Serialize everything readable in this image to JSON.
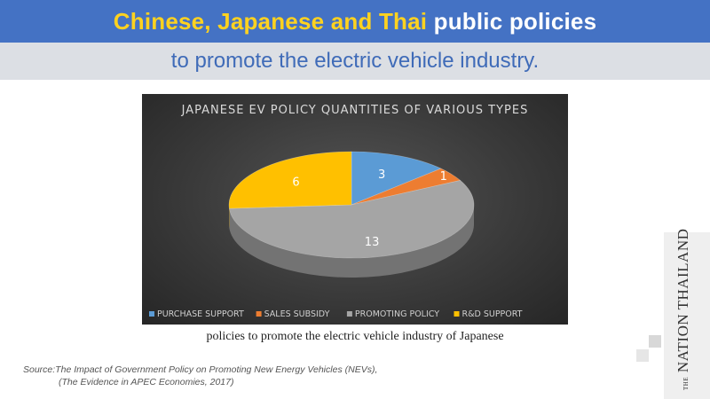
{
  "header": {
    "title_part1": "Chinese, Japanese and Thai",
    "title_part2": "public policies",
    "subtitle": "to promote the electric vehicle industry."
  },
  "chart_data": {
    "type": "pie",
    "title": "JAPANESE EV POLICY QUANTITIES OF VARIOUS TYPES",
    "categories": [
      "PURCHASE SUPPORT",
      "SALES SUBSIDY",
      "PROMOTING POLICY",
      "R&D SUPPORT"
    ],
    "values": [
      3,
      1,
      13,
      6
    ],
    "colors": [
      "#5b9bd5",
      "#ed7d31",
      "#a5a5a5",
      "#ffc000"
    ],
    "legend_position": "bottom"
  },
  "caption": "policies to promote the electric vehicle industry of Japanese",
  "source": {
    "line1": "Source:The Impact of Government Policy on Promoting New Energy Vehicles (NEVs),",
    "line2": "(The Evidence in APEC Economies, 2017)"
  },
  "branding": {
    "logo_text": "NATION THAILAND",
    "logo_small": "THE"
  }
}
